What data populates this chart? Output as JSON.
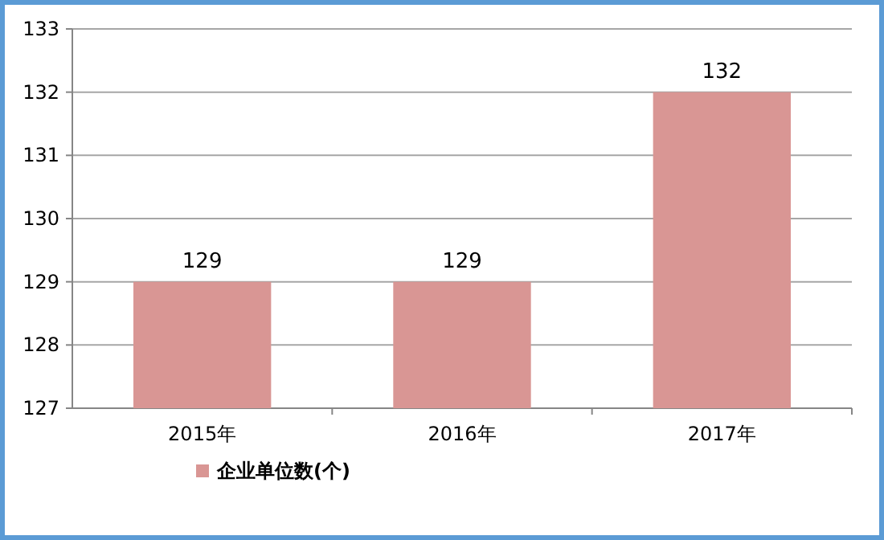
{
  "chart_data": {
    "type": "bar",
    "categories": [
      "2015年",
      "2016年",
      "2017年"
    ],
    "series": [
      {
        "name": "企业单位数(个)",
        "color": "#d99694",
        "values": [
          129,
          129,
          132
        ]
      }
    ],
    "ylim": [
      127,
      133
    ],
    "yticks": [
      127,
      128,
      129,
      130,
      131,
      132,
      133
    ],
    "grid": "y",
    "data_labels": true,
    "legend": "bottom"
  }
}
